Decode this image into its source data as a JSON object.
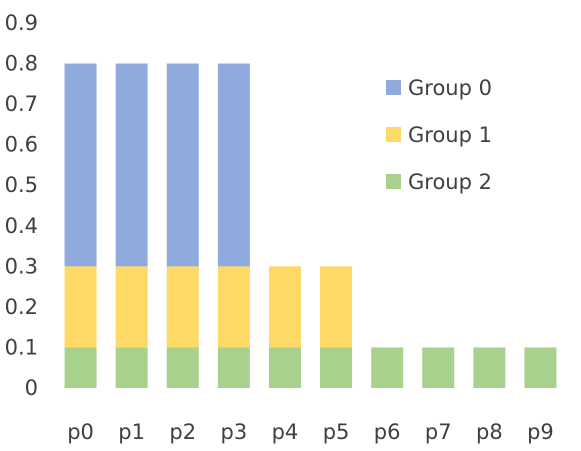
{
  "chart_data": {
    "type": "bar",
    "stacked": true,
    "categories": [
      "p0",
      "p1",
      "p2",
      "p3",
      "p4",
      "p5",
      "p6",
      "p7",
      "p8",
      "p9"
    ],
    "series": [
      {
        "name": "Group 2",
        "color": "#a9d18e",
        "values": [
          0.1,
          0.1,
          0.1,
          0.1,
          0.1,
          0.1,
          0.1,
          0.1,
          0.1,
          0.1
        ]
      },
      {
        "name": "Group 1",
        "color": "#ffd966",
        "values": [
          0.2,
          0.2,
          0.2,
          0.2,
          0.2,
          0.2,
          0,
          0,
          0,
          0
        ]
      },
      {
        "name": "Group 0",
        "color": "#8faadc",
        "values": [
          0.5,
          0.5,
          0.5,
          0.5,
          0,
          0,
          0,
          0,
          0,
          0
        ]
      }
    ],
    "legend_order": [
      "Group 0",
      "Group 1",
      "Group 2"
    ],
    "legend_position": "right",
    "ylim": [
      0,
      0.9
    ],
    "yticks": [
      "0",
      "0.1",
      "0.2",
      "0.3",
      "0.4",
      "0.5",
      "0.6",
      "0.7",
      "0.8",
      "0.9"
    ],
    "grid": false,
    "title": "",
    "xlabel": "",
    "ylabel": ""
  }
}
